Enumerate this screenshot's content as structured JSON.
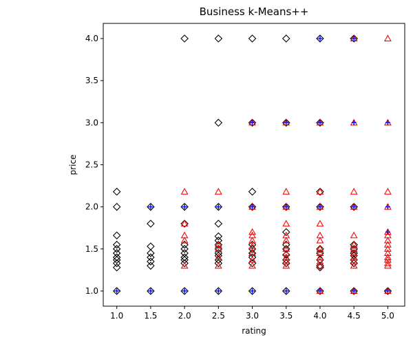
{
  "chart_data": {
    "type": "scatter",
    "title": "Business k-Means++",
    "xlabel": "rating",
    "ylabel": "price",
    "xlim": [
      0.8,
      5.25
    ],
    "ylim": [
      0.82,
      4.18
    ],
    "xticks": [
      "1.0",
      "1.5",
      "2.0",
      "2.5",
      "3.0",
      "3.5",
      "4.0",
      "4.5",
      "5.0"
    ],
    "yticks": [
      "1.0",
      "1.5",
      "2.0",
      "2.5",
      "3.0",
      "3.5",
      "4.0"
    ],
    "grid": false,
    "legend": "none",
    "series": [
      {
        "marker": "diamond",
        "color": "#000000",
        "points": [
          [
            1.0,
            1.0
          ],
          [
            1.0,
            1.28
          ],
          [
            1.0,
            1.33
          ],
          [
            1.0,
            1.37
          ],
          [
            1.0,
            1.4
          ],
          [
            1.0,
            1.45
          ],
          [
            1.0,
            1.5
          ],
          [
            1.0,
            1.55
          ],
          [
            1.0,
            1.66
          ],
          [
            1.0,
            2.0
          ],
          [
            1.0,
            2.18
          ],
          [
            1.5,
            1.0
          ],
          [
            1.5,
            1.3
          ],
          [
            1.5,
            1.35
          ],
          [
            1.5,
            1.4
          ],
          [
            1.5,
            1.45
          ],
          [
            1.5,
            1.53
          ],
          [
            1.5,
            1.8
          ],
          [
            1.5,
            2.0
          ],
          [
            2.0,
            1.0
          ],
          [
            2.0,
            1.33
          ],
          [
            2.0,
            1.37
          ],
          [
            2.0,
            1.4
          ],
          [
            2.0,
            1.45
          ],
          [
            2.0,
            1.5
          ],
          [
            2.0,
            1.55
          ],
          [
            2.0,
            1.8
          ],
          [
            2.0,
            2.0
          ],
          [
            2.0,
            4.0
          ],
          [
            2.5,
            1.0
          ],
          [
            2.5,
            1.33
          ],
          [
            2.5,
            1.37
          ],
          [
            2.5,
            1.42
          ],
          [
            2.5,
            1.45
          ],
          [
            2.5,
            1.5
          ],
          [
            2.5,
            1.55
          ],
          [
            2.5,
            1.6
          ],
          [
            2.5,
            1.65
          ],
          [
            2.5,
            1.8
          ],
          [
            2.5,
            2.0
          ],
          [
            2.5,
            3.0
          ],
          [
            2.5,
            4.0
          ],
          [
            3.0,
            1.0
          ],
          [
            3.0,
            1.33
          ],
          [
            3.0,
            1.4
          ],
          [
            3.0,
            1.45
          ],
          [
            3.0,
            1.5
          ],
          [
            3.0,
            1.55
          ],
          [
            3.0,
            2.0
          ],
          [
            3.0,
            2.18
          ],
          [
            3.0,
            3.0
          ],
          [
            3.0,
            4.0
          ],
          [
            3.5,
            1.0
          ],
          [
            3.5,
            1.33
          ],
          [
            3.5,
            1.37
          ],
          [
            3.5,
            1.43
          ],
          [
            3.5,
            1.5
          ],
          [
            3.5,
            1.55
          ],
          [
            3.5,
            1.7
          ],
          [
            3.5,
            2.0
          ],
          [
            3.5,
            3.0
          ],
          [
            3.5,
            4.0
          ],
          [
            4.0,
            1.0
          ],
          [
            4.0,
            1.28
          ],
          [
            4.0,
            1.3
          ],
          [
            4.0,
            1.37
          ],
          [
            4.0,
            1.45
          ],
          [
            4.0,
            1.5
          ],
          [
            4.0,
            2.0
          ],
          [
            4.0,
            2.18
          ],
          [
            4.0,
            3.0
          ],
          [
            4.0,
            4.0
          ],
          [
            4.5,
            1.0
          ],
          [
            4.5,
            1.33
          ],
          [
            4.5,
            1.37
          ],
          [
            4.5,
            1.42
          ],
          [
            4.5,
            1.45
          ],
          [
            4.5,
            1.5
          ],
          [
            4.5,
            1.55
          ],
          [
            4.5,
            2.0
          ],
          [
            4.5,
            4.0
          ],
          [
            5.0,
            1.0
          ]
        ]
      },
      {
        "marker": "triangle",
        "color": "#ff0000",
        "points": [
          [
            2.0,
            1.3
          ],
          [
            2.0,
            1.6
          ],
          [
            2.0,
            1.66
          ],
          [
            2.0,
            1.8
          ],
          [
            2.0,
            2.18
          ],
          [
            2.5,
            1.3
          ],
          [
            2.5,
            1.4
          ],
          [
            2.5,
            1.5
          ],
          [
            2.5,
            1.55
          ],
          [
            2.5,
            2.18
          ],
          [
            3.0,
            1.3
          ],
          [
            3.0,
            1.37
          ],
          [
            3.0,
            1.45
          ],
          [
            3.0,
            1.53
          ],
          [
            3.0,
            1.6
          ],
          [
            3.0,
            1.66
          ],
          [
            3.0,
            1.7
          ],
          [
            3.0,
            2.0
          ],
          [
            3.0,
            3.0
          ],
          [
            3.5,
            1.3
          ],
          [
            3.5,
            1.35
          ],
          [
            3.5,
            1.4
          ],
          [
            3.5,
            1.45
          ],
          [
            3.5,
            1.5
          ],
          [
            3.5,
            1.6
          ],
          [
            3.5,
            1.66
          ],
          [
            3.5,
            1.8
          ],
          [
            3.5,
            2.0
          ],
          [
            3.5,
            2.18
          ],
          [
            3.5,
            3.0
          ],
          [
            4.0,
            1.0
          ],
          [
            4.0,
            1.3
          ],
          [
            4.0,
            1.35
          ],
          [
            4.0,
            1.4
          ],
          [
            4.0,
            1.45
          ],
          [
            4.0,
            1.5
          ],
          [
            4.0,
            1.6
          ],
          [
            4.0,
            1.66
          ],
          [
            4.0,
            1.8
          ],
          [
            4.0,
            2.0
          ],
          [
            4.0,
            2.18
          ],
          [
            4.0,
            3.0
          ],
          [
            4.5,
            1.0
          ],
          [
            4.5,
            1.3
          ],
          [
            4.5,
            1.35
          ],
          [
            4.5,
            1.4
          ],
          [
            4.5,
            1.45
          ],
          [
            4.5,
            1.5
          ],
          [
            4.5,
            1.55
          ],
          [
            4.5,
            1.66
          ],
          [
            4.5,
            2.0
          ],
          [
            4.5,
            2.18
          ],
          [
            4.5,
            3.0
          ],
          [
            4.5,
            4.0
          ],
          [
            5.0,
            1.0
          ],
          [
            5.0,
            1.3
          ],
          [
            5.0,
            1.33
          ],
          [
            5.0,
            1.37
          ],
          [
            5.0,
            1.4
          ],
          [
            5.0,
            1.45
          ],
          [
            5.0,
            1.5
          ],
          [
            5.0,
            1.55
          ],
          [
            5.0,
            1.6
          ],
          [
            5.0,
            1.66
          ],
          [
            5.0,
            1.7
          ],
          [
            5.0,
            2.0
          ],
          [
            5.0,
            2.18
          ],
          [
            5.0,
            3.0
          ],
          [
            5.0,
            4.0
          ]
        ]
      },
      {
        "marker": "plus",
        "color": "#0000ff",
        "points": [
          [
            1.0,
            1.0
          ],
          [
            1.5,
            1.0
          ],
          [
            1.5,
            2.0
          ],
          [
            2.0,
            1.0
          ],
          [
            2.0,
            2.0
          ],
          [
            2.5,
            1.0
          ],
          [
            2.5,
            2.0
          ],
          [
            3.0,
            1.0
          ],
          [
            3.0,
            2.0
          ],
          [
            3.0,
            3.0
          ],
          [
            3.5,
            1.0
          ],
          [
            3.5,
            2.0
          ],
          [
            3.5,
            3.0
          ],
          [
            4.0,
            1.0
          ],
          [
            4.0,
            2.0
          ],
          [
            4.0,
            3.0
          ],
          [
            4.0,
            4.0
          ],
          [
            4.5,
            1.0
          ],
          [
            4.5,
            2.0
          ],
          [
            4.5,
            3.0
          ],
          [
            4.5,
            4.0
          ],
          [
            5.0,
            1.0
          ],
          [
            5.0,
            1.7
          ],
          [
            5.0,
            2.0
          ],
          [
            5.0,
            3.0
          ]
        ]
      }
    ]
  }
}
